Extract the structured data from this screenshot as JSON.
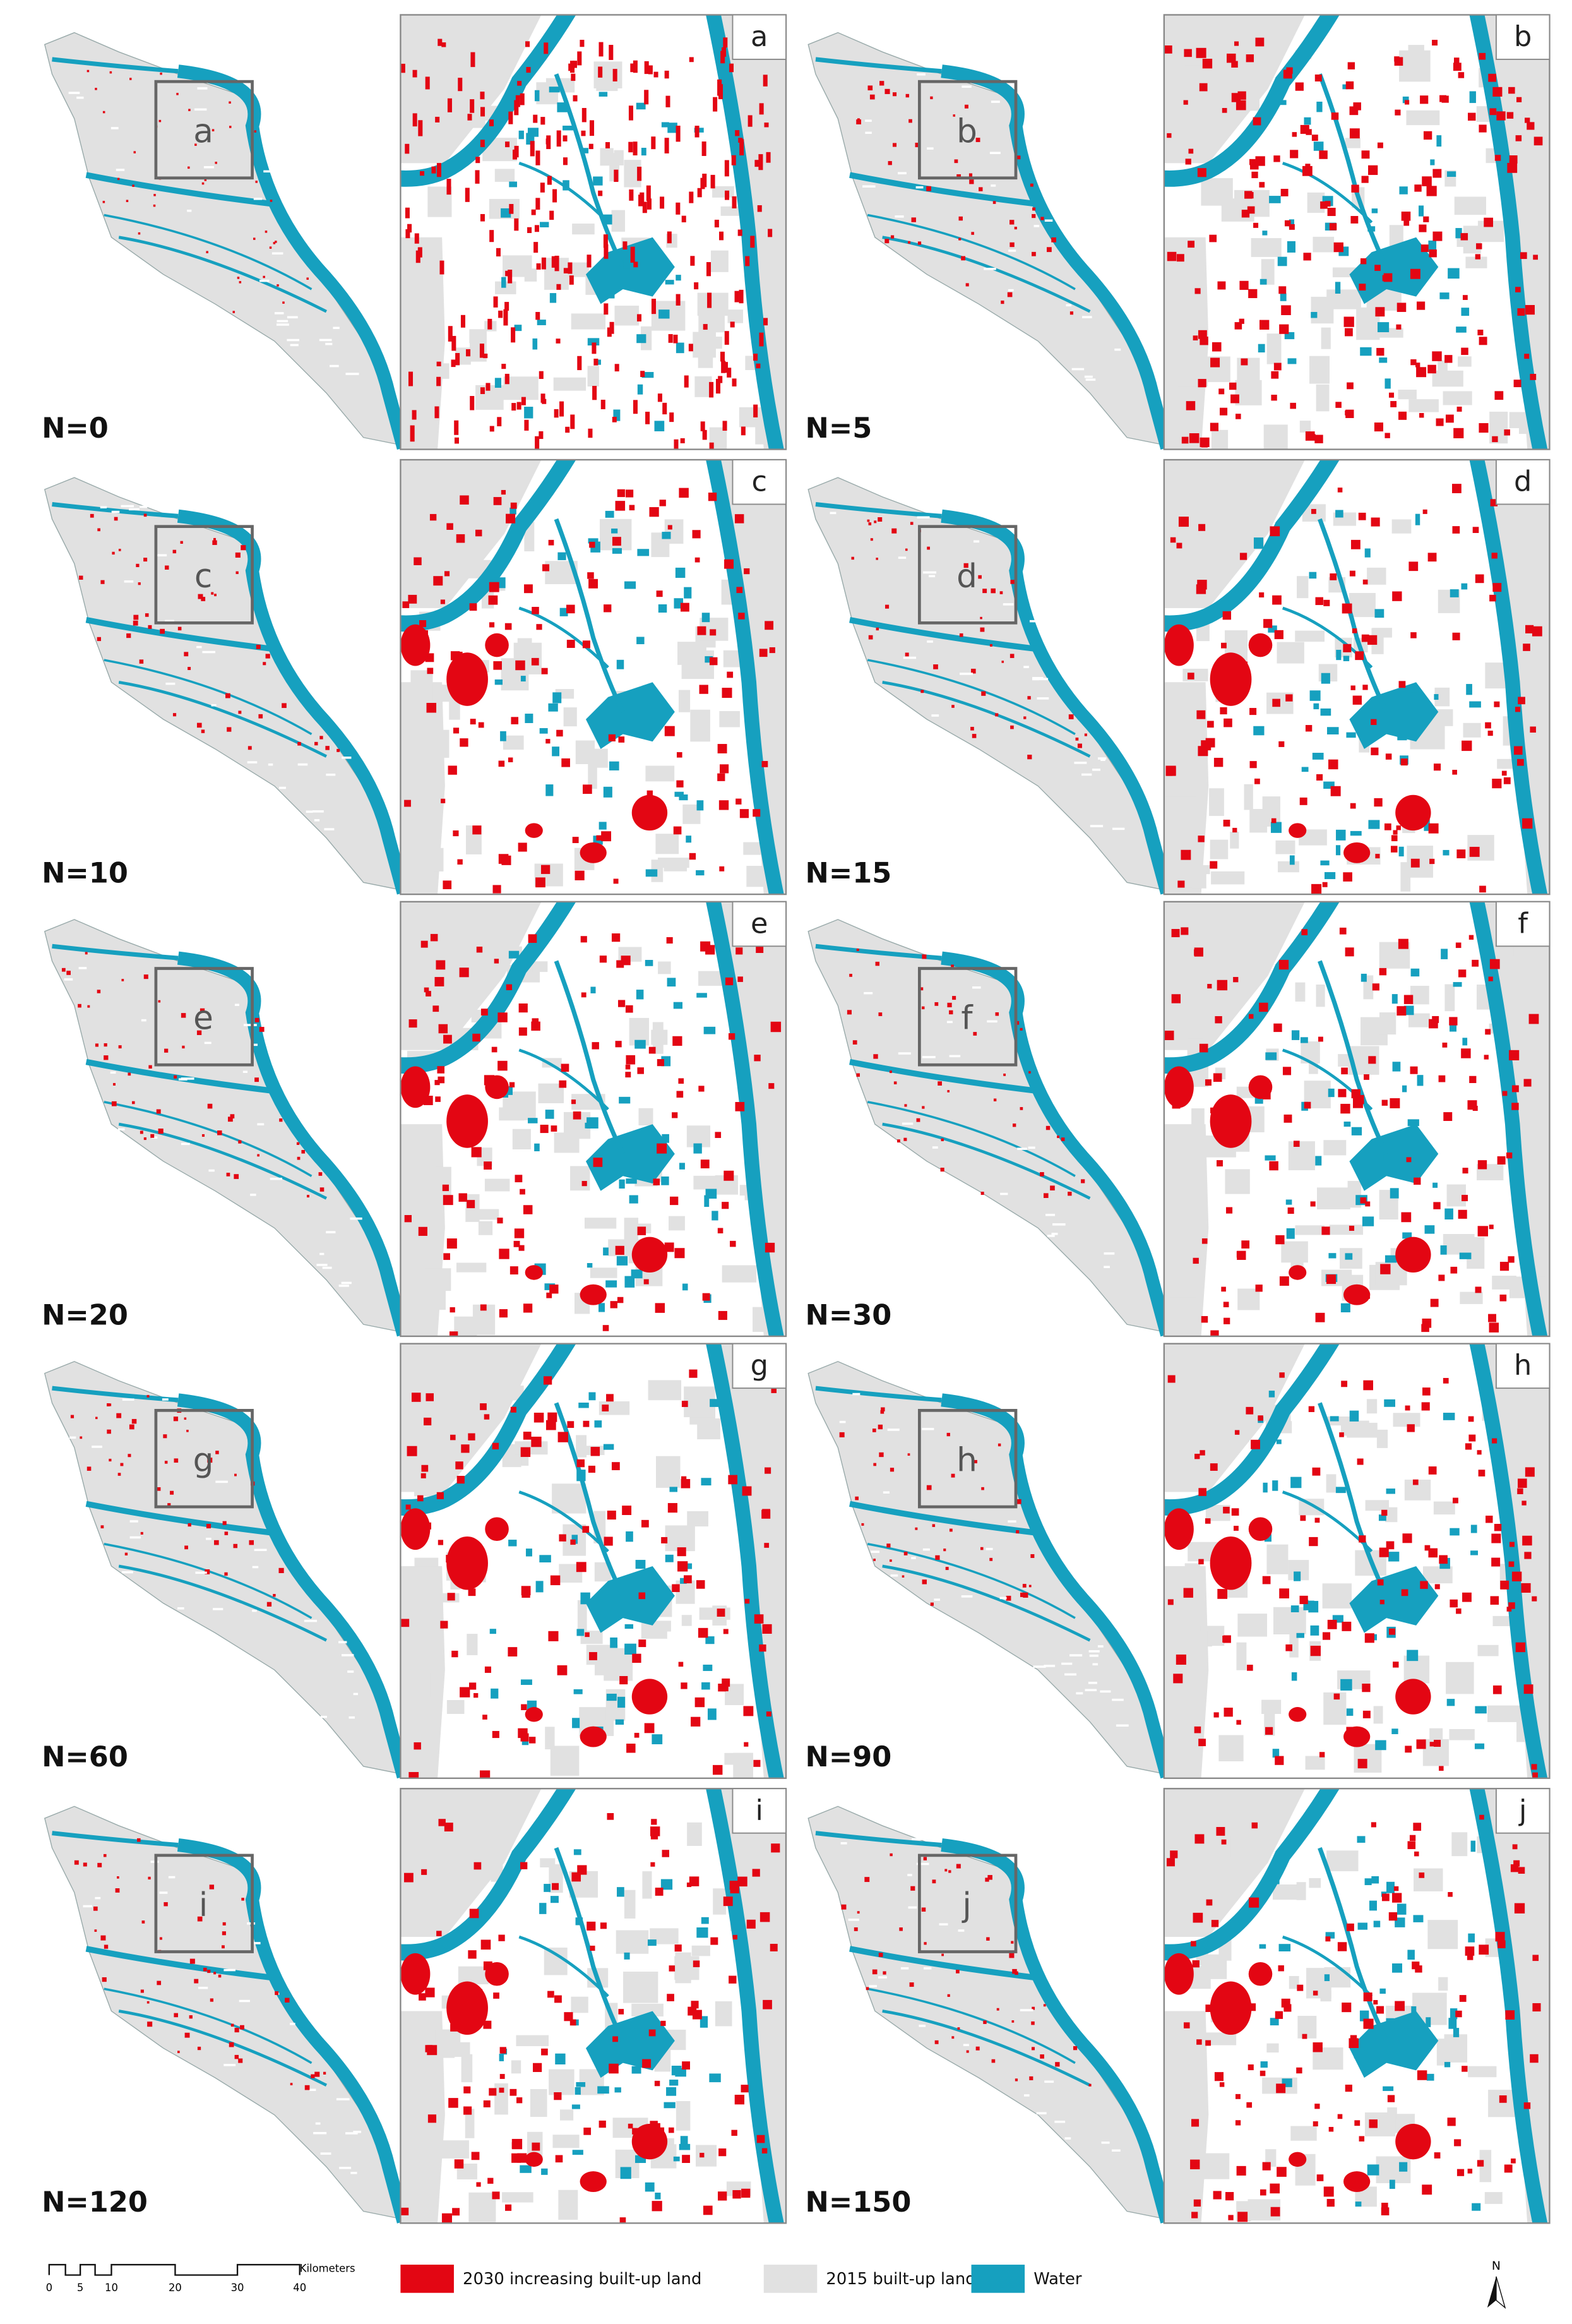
{
  "panels": [
    {
      "label": "N=0",
      "letter": "a"
    },
    {
      "label": "N=5",
      "letter": "b"
    },
    {
      "label": "N=10",
      "letter": "c"
    },
    {
      "label": "N=15",
      "letter": "d"
    },
    {
      "label": "N=20",
      "letter": "e"
    },
    {
      "label": "N=30",
      "letter": "f"
    },
    {
      "label": "N=60",
      "letter": "g"
    },
    {
      "label": "N=90",
      "letter": "h"
    },
    {
      "label": "N=120",
      "letter": "i"
    },
    {
      "label": "N=150",
      "letter": "j"
    }
  ],
  "legend": [
    {
      "label": "2030 increasing built-up land",
      "color": "#e30613"
    },
    {
      "label": "2015 built-up land",
      "color": "#e1e1e1"
    },
    {
      "label": "Water",
      "color": "#16a0bf"
    }
  ],
  "scale_bar": {
    "ticks": [
      "0",
      "5",
      "10",
      "20",
      "30",
      "40"
    ],
    "unit": "Kilometers"
  },
  "north": "N"
}
